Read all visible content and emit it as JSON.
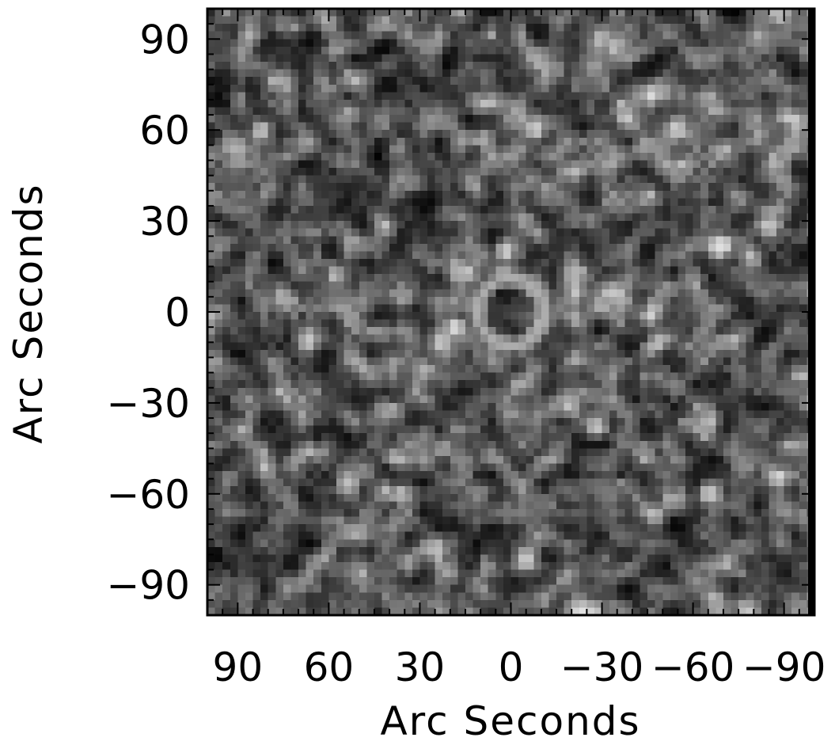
{
  "chart_data": {
    "type": "heatmap",
    "title": "",
    "xlabel": "Arc Seconds",
    "ylabel": "Arc Seconds",
    "xlim": [
      100,
      -100
    ],
    "ylim": [
      -100,
      100
    ],
    "x_reversed": true,
    "grid": false,
    "colormap": "grayscale",
    "x_ticks": [
      {
        "value": 90,
        "label": "90"
      },
      {
        "value": 60,
        "label": "60"
      },
      {
        "value": 30,
        "label": "30"
      },
      {
        "value": 0,
        "label": "0"
      },
      {
        "value": -30,
        "label": "−30"
      },
      {
        "value": -60,
        "label": "−60"
      },
      {
        "value": -90,
        "label": "−90"
      }
    ],
    "y_ticks": [
      {
        "value": 90,
        "label": "90"
      },
      {
        "value": 60,
        "label": "60"
      },
      {
        "value": 30,
        "label": "30"
      },
      {
        "value": 0,
        "label": "0"
      },
      {
        "value": -30,
        "label": "−30"
      },
      {
        "value": -60,
        "label": "−60"
      },
      {
        "value": -90,
        "label": "−90"
      }
    ],
    "minor_tick_step": 5,
    "features": [
      {
        "kind": "ring",
        "x": 0,
        "y": 0,
        "radius": 11,
        "brightness": 0.68
      },
      {
        "kind": "bright-spot",
        "x": 18,
        "y": -5,
        "brightness": 0.95
      },
      {
        "kind": "bright-spot",
        "x": 2,
        "y": 20,
        "brightness": 0.9
      },
      {
        "kind": "bright-spot",
        "x": -8,
        "y": 60,
        "brightness": 0.85
      },
      {
        "kind": "bright-spot",
        "x": -70,
        "y": 22,
        "brightness": 0.9
      },
      {
        "kind": "bright-spot",
        "x": -85,
        "y": 28,
        "brightness": 0.85
      },
      {
        "kind": "bright-spot",
        "x": -65,
        "y": -60,
        "brightness": 0.85
      },
      {
        "kind": "bright-spot",
        "x": -28,
        "y": -38,
        "brightness": 0.8
      },
      {
        "kind": "bright-spot",
        "x": -5,
        "y": -82,
        "brightness": 0.85
      },
      {
        "kind": "bright-spot",
        "x": 82,
        "y": 60,
        "brightness": 0.8
      },
      {
        "kind": "dark-patch",
        "x": 60,
        "y": 20,
        "brightness": 0.05
      },
      {
        "kind": "dark-patch",
        "x": -50,
        "y": 25,
        "brightness": 0.08
      }
    ],
    "noise_seed": 1337
  }
}
